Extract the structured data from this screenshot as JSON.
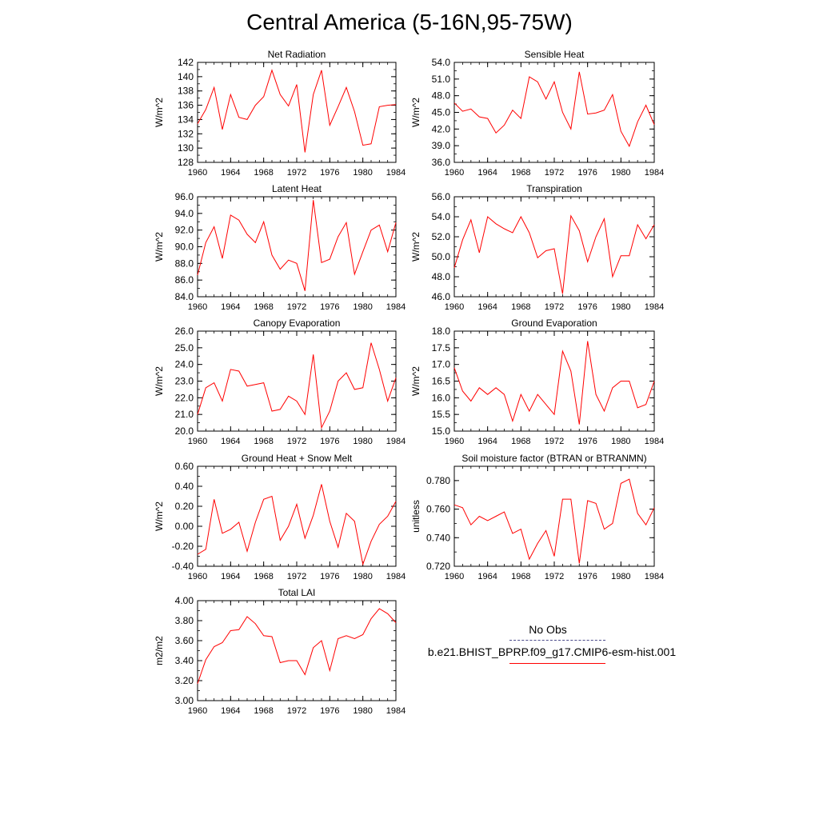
{
  "page_title": "Central America (5-16N,95-75W)",
  "legend": {
    "obs_label": "No Obs",
    "model_label": "b.e21.BHIST_BPRP.f09_g17.CMIP6-esm-hist.001",
    "model_color": "#ff0000"
  },
  "chart_data": [
    {
      "type": "line",
      "title": "Net Radiation",
      "ylabel": "W/m^2",
      "xlim": [
        1960,
        1984
      ],
      "ylim": [
        128,
        142
      ],
      "yticks": [
        "128",
        "130",
        "132",
        "134",
        "136",
        "138",
        "140",
        "142"
      ],
      "xticks": [
        "1960",
        "1964",
        "1968",
        "1972",
        "1976",
        "1980",
        "1984"
      ],
      "x": [
        1960,
        1961,
        1962,
        1963,
        1964,
        1965,
        1966,
        1967,
        1968,
        1969,
        1970,
        1971,
        1972,
        1973,
        1974,
        1975,
        1976,
        1977,
        1978,
        1979,
        1980,
        1981,
        1982,
        1983,
        1984
      ],
      "series": [
        {
          "values": [
            133.4,
            135.4,
            138.5,
            132.6,
            137.5,
            134.3,
            134.0,
            136.0,
            137.2,
            140.9,
            137.5,
            135.9,
            138.9,
            129.4,
            137.5,
            140.9,
            133.2,
            135.8,
            138.5,
            135.1,
            130.4,
            130.6,
            135.8,
            136.0,
            136.1
          ]
        }
      ]
    },
    {
      "type": "line",
      "title": "Sensible Heat",
      "ylabel": "W/m^2",
      "xlim": [
        1960,
        1984
      ],
      "ylim": [
        36.0,
        54.0
      ],
      "yticks": [
        "36.0",
        "39.0",
        "42.0",
        "45.0",
        "48.0",
        "51.0",
        "54.0"
      ],
      "xticks": [
        "1960",
        "1964",
        "1968",
        "1972",
        "1976",
        "1980",
        "1984"
      ],
      "x": [
        1960,
        1961,
        1962,
        1963,
        1964,
        1965,
        1966,
        1967,
        1968,
        1969,
        1970,
        1971,
        1972,
        1973,
        1974,
        1975,
        1976,
        1977,
        1978,
        1979,
        1980,
        1981,
        1982,
        1983,
        1984
      ],
      "series": [
        {
          "values": [
            46.7,
            45.2,
            45.6,
            44.2,
            43.9,
            41.3,
            42.7,
            45.4,
            43.9,
            51.4,
            50.5,
            47.4,
            50.5,
            45.0,
            42.0,
            52.3,
            44.7,
            44.9,
            45.4,
            48.2,
            41.6,
            38.9,
            43.3,
            46.3,
            42.8
          ]
        }
      ]
    },
    {
      "type": "line",
      "title": "Latent Heat",
      "ylabel": "W/m^2",
      "xlim": [
        1960,
        1984
      ],
      "ylim": [
        84.0,
        96.0
      ],
      "yticks": [
        "84.0",
        "86.0",
        "88.0",
        "90.0",
        "92.0",
        "94.0",
        "96.0"
      ],
      "xticks": [
        "1960",
        "1964",
        "1968",
        "1972",
        "1976",
        "1980",
        "1984"
      ],
      "x": [
        1960,
        1961,
        1962,
        1963,
        1964,
        1965,
        1966,
        1967,
        1968,
        1969,
        1970,
        1971,
        1972,
        1973,
        1974,
        1975,
        1976,
        1977,
        1978,
        1979,
        1980,
        1981,
        1982,
        1983,
        1984
      ],
      "series": [
        {
          "values": [
            86.6,
            90.5,
            92.4,
            88.6,
            93.8,
            93.2,
            91.5,
            90.5,
            93.0,
            89.0,
            87.3,
            88.4,
            88.0,
            84.7,
            95.6,
            88.1,
            88.5,
            91.2,
            92.9,
            86.7,
            89.4,
            92.0,
            92.6,
            89.4,
            92.9
          ]
        }
      ]
    },
    {
      "type": "line",
      "title": "Transpiration",
      "ylabel": "W/m^2",
      "xlim": [
        1960,
        1984
      ],
      "ylim": [
        46.0,
        56.0
      ],
      "yticks": [
        "46.0",
        "48.0",
        "50.0",
        "52.0",
        "54.0",
        "56.0"
      ],
      "xticks": [
        "1960",
        "1964",
        "1968",
        "1972",
        "1976",
        "1980",
        "1984"
      ],
      "x": [
        1960,
        1961,
        1962,
        1963,
        1964,
        1965,
        1966,
        1967,
        1968,
        1969,
        1970,
        1971,
        1972,
        1973,
        1974,
        1975,
        1976,
        1977,
        1978,
        1979,
        1980,
        1981,
        1982,
        1983,
        1984
      ],
      "series": [
        {
          "values": [
            48.9,
            51.7,
            53.7,
            50.4,
            54.0,
            53.3,
            52.8,
            52.4,
            54.0,
            52.4,
            49.9,
            50.6,
            50.8,
            46.3,
            54.1,
            52.6,
            49.5,
            52.0,
            53.8,
            48.0,
            50.1,
            50.1,
            53.2,
            51.8,
            53.2
          ]
        }
      ]
    },
    {
      "type": "line",
      "title": "Canopy Evaporation",
      "ylabel": "W/m^2",
      "xlim": [
        1960,
        1984
      ],
      "ylim": [
        20.0,
        26.0
      ],
      "yticks": [
        "20.0",
        "21.0",
        "22.0",
        "23.0",
        "24.0",
        "25.0",
        "26.0"
      ],
      "xticks": [
        "1960",
        "1964",
        "1968",
        "1972",
        "1976",
        "1980",
        "1984"
      ],
      "x": [
        1960,
        1961,
        1962,
        1963,
        1964,
        1965,
        1966,
        1967,
        1968,
        1969,
        1970,
        1971,
        1972,
        1973,
        1974,
        1975,
        1976,
        1977,
        1978,
        1979,
        1980,
        1981,
        1982,
        1983,
        1984
      ],
      "series": [
        {
          "values": [
            21.0,
            22.6,
            22.9,
            21.8,
            23.7,
            23.6,
            22.7,
            22.8,
            22.9,
            21.2,
            21.3,
            22.1,
            21.8,
            21.0,
            24.6,
            20.2,
            21.2,
            23.0,
            23.5,
            22.5,
            22.6,
            25.3,
            23.7,
            21.8,
            23.2
          ]
        }
      ]
    },
    {
      "type": "line",
      "title": "Ground Evaporation",
      "ylabel": "W/m^2",
      "xlim": [
        1960,
        1984
      ],
      "ylim": [
        15.0,
        18.0
      ],
      "yticks": [
        "15.0",
        "15.5",
        "16.0",
        "16.5",
        "17.0",
        "17.5",
        "18.0"
      ],
      "xticks": [
        "1960",
        "1964",
        "1968",
        "1972",
        "1976",
        "1980",
        "1984"
      ],
      "x": [
        1960,
        1961,
        1962,
        1963,
        1964,
        1965,
        1966,
        1967,
        1968,
        1969,
        1970,
        1971,
        1972,
        1973,
        1974,
        1975,
        1976,
        1977,
        1978,
        1979,
        1980,
        1981,
        1982,
        1983,
        1984
      ],
      "series": [
        {
          "values": [
            16.9,
            16.2,
            15.9,
            16.3,
            16.1,
            16.3,
            16.1,
            15.3,
            16.1,
            15.6,
            16.1,
            15.8,
            15.5,
            17.4,
            16.8,
            15.2,
            17.7,
            16.1,
            15.6,
            16.3,
            16.5,
            16.5,
            15.7,
            15.8,
            16.5
          ]
        }
      ]
    },
    {
      "type": "line",
      "title": "Ground Heat + Snow Melt",
      "ylabel": "W/m^2",
      "xlim": [
        1960,
        1984
      ],
      "ylim": [
        -0.4,
        0.6
      ],
      "yticks": [
        "-0.40",
        "-0.20",
        "0.00",
        "0.20",
        "0.40",
        "0.60"
      ],
      "xticks": [
        "1960",
        "1964",
        "1968",
        "1972",
        "1976",
        "1980",
        "1984"
      ],
      "x": [
        1960,
        1961,
        1962,
        1963,
        1964,
        1965,
        1966,
        1967,
        1968,
        1969,
        1970,
        1971,
        1972,
        1973,
        1974,
        1975,
        1976,
        1977,
        1978,
        1979,
        1980,
        1981,
        1982,
        1983,
        1984
      ],
      "series": [
        {
          "values": [
            -0.28,
            -0.23,
            0.27,
            -0.07,
            -0.03,
            0.04,
            -0.25,
            0.04,
            0.27,
            0.3,
            -0.14,
            0.0,
            0.22,
            -0.12,
            0.11,
            0.42,
            0.05,
            -0.21,
            0.13,
            0.05,
            -0.38,
            -0.15,
            0.02,
            0.1,
            0.25
          ]
        }
      ]
    },
    {
      "type": "line",
      "title": "Soil moisture factor (BTRAN or BTRANMN)",
      "ylabel": "unitless",
      "xlim": [
        1960,
        1984
      ],
      "ylim": [
        0.72,
        0.79
      ],
      "yticks": [
        "0.720",
        "0.740",
        "0.760",
        "0.780"
      ],
      "xticks": [
        "1960",
        "1964",
        "1968",
        "1972",
        "1976",
        "1980",
        "1984"
      ],
      "x": [
        1960,
        1961,
        1962,
        1963,
        1964,
        1965,
        1966,
        1967,
        1968,
        1969,
        1970,
        1971,
        1972,
        1973,
        1974,
        1975,
        1976,
        1977,
        1978,
        1979,
        1980,
        1981,
        1982,
        1983,
        1984
      ],
      "series": [
        {
          "values": [
            0.763,
            0.761,
            0.749,
            0.755,
            0.752,
            0.755,
            0.758,
            0.743,
            0.746,
            0.725,
            0.736,
            0.745,
            0.727,
            0.767,
            0.767,
            0.722,
            0.766,
            0.764,
            0.746,
            0.75,
            0.778,
            0.781,
            0.757,
            0.749,
            0.761
          ]
        }
      ]
    },
    {
      "type": "line",
      "title": "Total LAI",
      "ylabel": "m2/m2",
      "xlim": [
        1960,
        1984
      ],
      "ylim": [
        3.0,
        4.0
      ],
      "yticks": [
        "3.00",
        "3.20",
        "3.40",
        "3.60",
        "3.80",
        "4.00"
      ],
      "xticks": [
        "1960",
        "1964",
        "1968",
        "1972",
        "1976",
        "1980",
        "1984"
      ],
      "x": [
        1960,
        1961,
        1962,
        1963,
        1964,
        1965,
        1966,
        1967,
        1968,
        1969,
        1970,
        1971,
        1972,
        1973,
        1974,
        1975,
        1976,
        1977,
        1978,
        1979,
        1980,
        1981,
        1982,
        1983,
        1984
      ],
      "series": [
        {
          "values": [
            3.17,
            3.41,
            3.54,
            3.58,
            3.7,
            3.71,
            3.84,
            3.77,
            3.65,
            3.64,
            3.38,
            3.4,
            3.4,
            3.26,
            3.53,
            3.6,
            3.3,
            3.62,
            3.65,
            3.62,
            3.66,
            3.82,
            3.92,
            3.87,
            3.78
          ]
        }
      ]
    }
  ]
}
